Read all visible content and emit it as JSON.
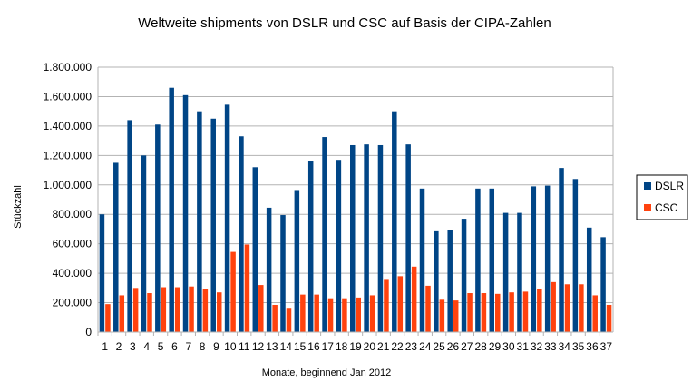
{
  "chart_data": {
    "type": "bar",
    "title": "Weltweite shipments von DSLR und CSC auf Basis der CIPA-Zahlen",
    "xlabel": "Monate, beginnend Jan 2012",
    "ylabel": "Stückzahl",
    "ylim": [
      0,
      1800000
    ],
    "yticks": [
      "0",
      "200.000",
      "400.000",
      "600.000",
      "800.000",
      "1.000.000",
      "1.200.000",
      "1.400.000",
      "1.600.000",
      "1.800.000"
    ],
    "grid": true,
    "legend_position": "right",
    "categories": [
      "1",
      "2",
      "3",
      "4",
      "5",
      "6",
      "7",
      "8",
      "9",
      "10",
      "11",
      "12",
      "13",
      "14",
      "15",
      "16",
      "17",
      "18",
      "19",
      "20",
      "21",
      "22",
      "23",
      "24",
      "25",
      "26",
      "27",
      "28",
      "29",
      "30",
      "31",
      "32",
      "33",
      "34",
      "35",
      "36",
      "37"
    ],
    "series": [
      {
        "name": "DSLR",
        "color": "#004586",
        "values": [
          800000,
          1150000,
          1440000,
          1200000,
          1410000,
          1660000,
          1610000,
          1500000,
          1450000,
          1545000,
          1330000,
          1120000,
          845000,
          795000,
          965000,
          1165000,
          1325000,
          1170000,
          1270000,
          1275000,
          1270000,
          1500000,
          1275000,
          975000,
          685000,
          695000,
          770000,
          975000,
          975000,
          810000,
          810000,
          990000,
          995000,
          1115000,
          1040000,
          710000,
          645000
        ]
      },
      {
        "name": "CSC",
        "color": "#ff420e",
        "values": [
          190000,
          250000,
          300000,
          265000,
          305000,
          305000,
          310000,
          290000,
          270000,
          545000,
          595000,
          320000,
          185000,
          165000,
          255000,
          255000,
          230000,
          230000,
          235000,
          250000,
          355000,
          380000,
          445000,
          315000,
          220000,
          215000,
          265000,
          265000,
          260000,
          270000,
          275000,
          290000,
          340000,
          325000,
          325000,
          250000,
          185000
        ]
      }
    ]
  }
}
